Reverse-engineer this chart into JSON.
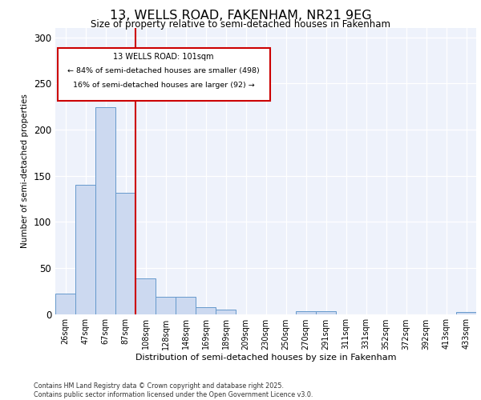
{
  "title1": "13, WELLS ROAD, FAKENHAM, NR21 9EG",
  "title2": "Size of property relative to semi-detached houses in Fakenham",
  "xlabel": "Distribution of semi-detached houses by size in Fakenham",
  "ylabel": "Number of semi-detached properties",
  "categories": [
    "26sqm",
    "47sqm",
    "67sqm",
    "87sqm",
    "108sqm",
    "128sqm",
    "148sqm",
    "169sqm",
    "189sqm",
    "209sqm",
    "230sqm",
    "250sqm",
    "270sqm",
    "291sqm",
    "311sqm",
    "331sqm",
    "352sqm",
    "372sqm",
    "392sqm",
    "413sqm",
    "433sqm"
  ],
  "values": [
    22,
    140,
    224,
    131,
    39,
    19,
    19,
    7,
    5,
    0,
    0,
    0,
    3,
    3,
    0,
    0,
    0,
    0,
    0,
    0,
    2
  ],
  "bar_color": "#ccd9f0",
  "bar_edge_color": "#6699cc",
  "vline_x": 3.5,
  "vline_color": "#cc0000",
  "annotation_title": "13 WELLS ROAD: 101sqm",
  "annotation_line1": "← 84% of semi-detached houses are smaller (498)",
  "annotation_line2": "16% of semi-detached houses are larger (92) →",
  "annotation_box_color": "#cc0000",
  "ylim": [
    0,
    310
  ],
  "yticks": [
    0,
    50,
    100,
    150,
    200,
    250,
    300
  ],
  "background_color": "#eef2fb",
  "footer1": "Contains HM Land Registry data © Crown copyright and database right 2025.",
  "footer2": "Contains public sector information licensed under the Open Government Licence v3.0."
}
